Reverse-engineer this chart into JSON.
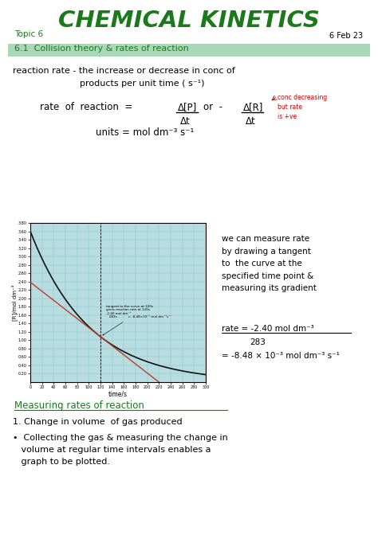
{
  "bg_color": "#ffffff",
  "page_width": 4.74,
  "page_height": 6.72,
  "title_topic": "Topic 6",
  "title_main": "CHEMICAL KINETICS",
  "title_date": "6 Feb 23",
  "green_color": "#1a7a1a",
  "section1_text": "6.1  Collision theory & rates of reaction",
  "section1_bg": "#a8d8b8",
  "graph_bg": "#b8dde0",
  "graph_grid_color": "#80bfc8",
  "curve_color": "#111111",
  "tangent_color": "#c0392b",
  "graph_xlabel": "time/s",
  "graph_ylabel": "[R]/mol dm⁻³",
  "section2_text": "Measuring rates of reaction",
  "red_color": "#cc0000"
}
